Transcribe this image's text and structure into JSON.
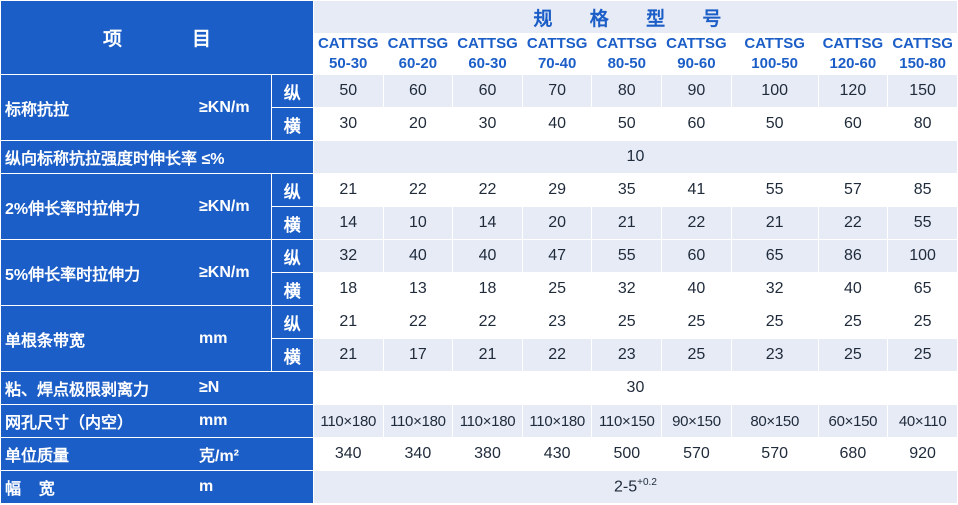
{
  "header": {
    "item_left": "项",
    "item_right": "目",
    "spec_title": "规 格 型 号",
    "models": [
      {
        "name": "CATTSG",
        "size": "50-30"
      },
      {
        "name": "CATTSG",
        "size": "60-20"
      },
      {
        "name": "CATTSG",
        "size": "60-30"
      },
      {
        "name": "CATTSG",
        "size": "70-40"
      },
      {
        "name": "CATTSG",
        "size": "80-50"
      },
      {
        "name": "CATTSG",
        "size": "90-60"
      },
      {
        "name": "CATTSG",
        "size": "100-50"
      },
      {
        "name": "CATTSG",
        "size": "120-60"
      },
      {
        "name": "CATTSG",
        "size": "150-80"
      }
    ]
  },
  "rows": {
    "tensile": {
      "label": "标称抗拉",
      "unit": "≥KN/m",
      "long_label": "纵",
      "long": [
        "50",
        "60",
        "60",
        "70",
        "80",
        "90",
        "100",
        "120",
        "150"
      ],
      "trans_label": "横",
      "trans": [
        "30",
        "20",
        "30",
        "40",
        "50",
        "60",
        "50",
        "60",
        "80"
      ]
    },
    "elongation": {
      "label": "纵向标称抗拉强度时伸长率 ≤%",
      "value": "10"
    },
    "force2": {
      "label": "2%伸长率时拉伸力",
      "unit": "≥KN/m",
      "long_label": "纵",
      "long": [
        "21",
        "22",
        "22",
        "29",
        "35",
        "41",
        "55",
        "57",
        "85"
      ],
      "trans_label": "横",
      "trans": [
        "14",
        "10",
        "14",
        "20",
        "21",
        "22",
        "21",
        "22",
        "55"
      ]
    },
    "force5": {
      "label": "5%伸长率时拉伸力",
      "unit": "≥KN/m",
      "long_label": "纵",
      "long": [
        "32",
        "40",
        "40",
        "47",
        "55",
        "60",
        "65",
        "86",
        "100"
      ],
      "trans_label": "横",
      "trans": [
        "18",
        "13",
        "18",
        "25",
        "32",
        "40",
        "32",
        "40",
        "65"
      ]
    },
    "strip_width": {
      "label": "单根条带宽",
      "unit": "mm",
      "long_label": "纵",
      "long": [
        "21",
        "22",
        "22",
        "23",
        "25",
        "25",
        "25",
        "25",
        "25"
      ],
      "trans_label": "横",
      "trans": [
        "21",
        "17",
        "21",
        "22",
        "23",
        "25",
        "23",
        "25",
        "25"
      ]
    },
    "peel": {
      "label": "粘、焊点极限剥离力",
      "unit": "≥N",
      "value": "30"
    },
    "mesh": {
      "label": "网孔尺寸（内空）",
      "unit": "mm",
      "values": [
        "110×180",
        "110×180",
        "110×180",
        "110×180",
        "110×150",
        "90×150",
        "80×150",
        "60×150",
        "40×110"
      ]
    },
    "mass": {
      "label": "单位质量",
      "unit": "克/m²",
      "values": [
        "340",
        "340",
        "380",
        "430",
        "500",
        "570",
        "570",
        "680",
        "920"
      ]
    },
    "width": {
      "label": "幅    宽",
      "unit": "m",
      "value": "2-5",
      "value_sup": "+0.2"
    }
  },
  "colors": {
    "header_blue": "#1c5ec7",
    "alt_row": "#e6ebf6",
    "text": "#1f2a3a"
  }
}
